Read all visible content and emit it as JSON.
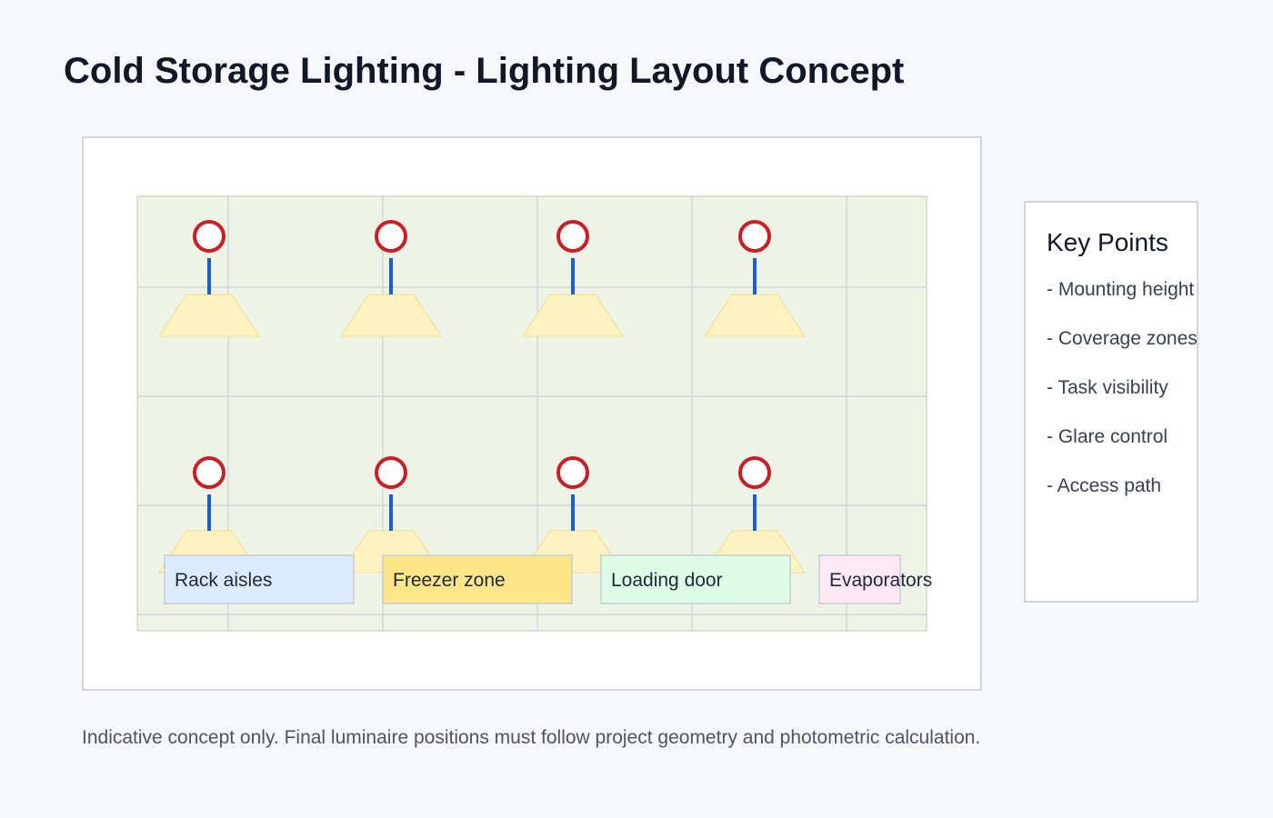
{
  "title": "Cold Storage Lighting - Lighting Layout Concept",
  "zones": [
    {
      "label": "Rack aisles",
      "fill": "#dbeafe"
    },
    {
      "label": "Freezer zone",
      "fill": "#fde68a"
    },
    {
      "label": "Loading door",
      "fill": "#dcfce7"
    },
    {
      "label": "Evaporators",
      "fill": "#fce7f3"
    }
  ],
  "luminaire_rows": 2,
  "luminaires_per_row": 4,
  "key_points": {
    "title": "Key Points",
    "items": [
      "- Mounting height",
      "- Coverage zones",
      "- Task visibility",
      "- Glare control",
      "- Access path"
    ]
  },
  "footnote": "Indicative concept only. Final luminaire positions must follow project geometry and photometric calculation.",
  "colors": {
    "floor": "#edf4e6",
    "grid": "#d1d5db",
    "luminaire_ring": "#c81e28",
    "stem": "#1d5fc5",
    "beam": "#fef3c0"
  }
}
